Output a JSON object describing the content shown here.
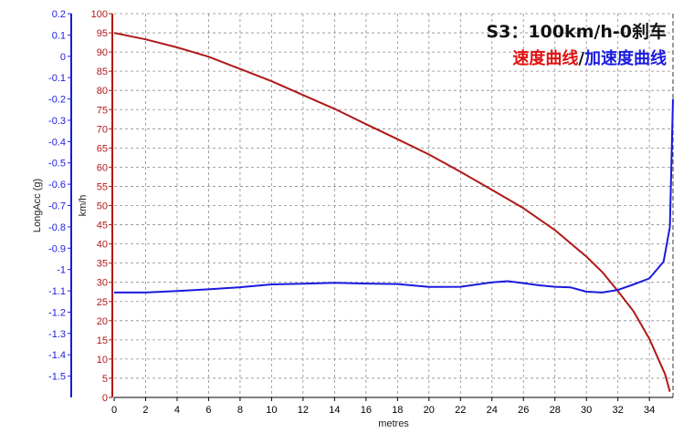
{
  "chart_data": {
    "type": "line",
    "title": "S3：100km/h-0刹车",
    "subtitle": {
      "speed_label": "速度曲线",
      "separator": "/",
      "acc_label": "加速度曲线"
    },
    "xlabel": "metres",
    "xlim": [
      0,
      35.5
    ],
    "x_ticks": [
      0,
      2,
      4,
      6,
      8,
      10,
      12,
      14,
      16,
      18,
      20,
      22,
      24,
      26,
      28,
      30,
      32,
      34
    ],
    "grid": true,
    "y_left_speed": {
      "label": "km/h",
      "ylim": [
        0,
        100
      ],
      "ticks": [
        0,
        5,
        10,
        15,
        20,
        25,
        30,
        35,
        40,
        45,
        50,
        55,
        60,
        65,
        70,
        75,
        80,
        85,
        90,
        95,
        100
      ],
      "color": "#b01818"
    },
    "y_left_acc": {
      "label": "LongAcc (g)",
      "ylim": [
        -1.6,
        0.2
      ],
      "ticks": [
        0.2,
        0.1,
        0,
        -0.1,
        -0.2,
        -0.3,
        -0.4,
        -0.5,
        -0.6,
        -0.7,
        -0.8,
        -0.9,
        -1,
        -1.1,
        -1.2,
        -1.3,
        -1.4,
        -1.5
      ],
      "color": "#1a1ae0"
    },
    "series": [
      {
        "key": "speed",
        "axis": "speed",
        "color": "#b01818",
        "x": [
          0,
          2,
          4,
          6,
          8,
          10,
          12,
          14,
          16,
          18,
          20,
          22,
          24,
          26,
          28,
          30,
          31,
          32,
          33,
          34,
          35,
          35.3
        ],
        "y": [
          95,
          93.3,
          91.2,
          88.8,
          85.6,
          82.4,
          78.8,
          75.2,
          71.2,
          67.3,
          63.3,
          58.8,
          54.1,
          49.3,
          43.6,
          36.7,
          32.7,
          27.7,
          22.4,
          15.3,
          6,
          1.5
        ]
      },
      {
        "key": "acc",
        "axis": "acc",
        "color": "#1a1ae0",
        "x": [
          0,
          2,
          4,
          6,
          8,
          10,
          12,
          14,
          16,
          18,
          20,
          22,
          24,
          25,
          26,
          27,
          28,
          29,
          30,
          31,
          32,
          33,
          34,
          34.9,
          35.3,
          35.5
        ],
        "y": [
          -1.108,
          -1.108,
          -1.101,
          -1.093,
          -1.083,
          -1.07,
          -1.067,
          -1.062,
          -1.066,
          -1.068,
          -1.082,
          -1.081,
          -1.06,
          -1.055,
          -1.064,
          -1.074,
          -1.081,
          -1.084,
          -1.104,
          -1.108,
          -1.096,
          -1.07,
          -1.042,
          -0.963,
          -0.8,
          -0.2
        ]
      }
    ]
  }
}
